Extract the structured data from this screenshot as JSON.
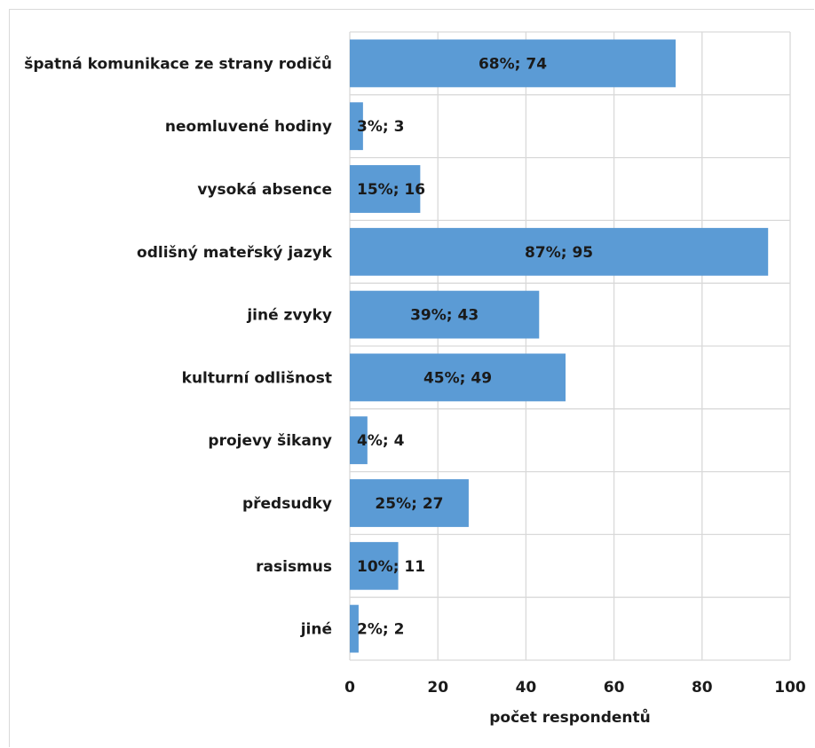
{
  "chart_data": {
    "type": "bar",
    "orientation": "horizontal",
    "categories": [
      "špatná komunikace ze strany rodičů",
      "neomluvené hodiny",
      "vysoká absence",
      "odlišný mateřský jazyk",
      "jiné zvyky",
      "kulturní odlišnost",
      "projevy šikany",
      "předsudky",
      "rasismus",
      "jiné"
    ],
    "values": [
      74,
      3,
      16,
      95,
      43,
      49,
      4,
      27,
      11,
      2
    ],
    "data_labels": [
      "68%; 74",
      "3%; 3",
      "15%; 16",
      "87%; 95",
      "39%; 43",
      "45%; 49",
      "4%; 4",
      "25%; 27",
      "10%; 11",
      "2%; 2"
    ],
    "xlabel": "počet respondentů",
    "ylabel": "",
    "title": "",
    "xlim": [
      0,
      100
    ],
    "xticks": [
      "0",
      "20",
      "40",
      "60",
      "80",
      "100"
    ],
    "grid": "vertical",
    "bar_color": "#5b9bd5",
    "grid_color": "#d9d9d9"
  }
}
